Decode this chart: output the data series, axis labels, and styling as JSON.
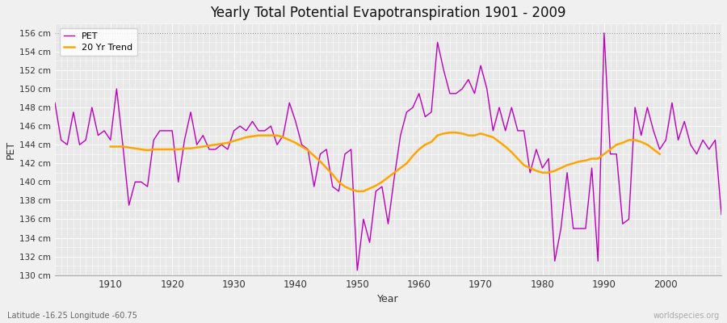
{
  "title": "Yearly Total Potential Evapotranspiration 1901 - 2009",
  "xlabel": "Year",
  "ylabel": "PET",
  "subtitle_left": "Latitude -16.25 Longitude -60.75",
  "watermark": "worldspecies.org",
  "ylim": [
    130,
    157
  ],
  "ytick_labels": [
    "130 cm",
    "132 cm",
    "134 cm",
    "136 cm",
    "138 cm",
    "140 cm",
    "142 cm",
    "144 cm",
    "146 cm",
    "148 cm",
    "150 cm",
    "152 cm",
    "154 cm",
    "156 cm"
  ],
  "ytick_values": [
    130,
    132,
    134,
    136,
    138,
    140,
    142,
    144,
    146,
    148,
    150,
    152,
    154,
    156
  ],
  "pet_color": "#bb00bb",
  "trend_color": "#ffa500",
  "bg_color": "#f0f0f0",
  "plot_bg_color": "#e8e8e8",
  "years": [
    1901,
    1902,
    1903,
    1904,
    1905,
    1906,
    1907,
    1908,
    1909,
    1910,
    1911,
    1912,
    1913,
    1914,
    1915,
    1916,
    1917,
    1918,
    1919,
    1920,
    1921,
    1922,
    1923,
    1924,
    1925,
    1926,
    1927,
    1928,
    1929,
    1930,
    1931,
    1932,
    1933,
    1934,
    1935,
    1936,
    1937,
    1938,
    1939,
    1940,
    1941,
    1942,
    1943,
    1944,
    1945,
    1946,
    1947,
    1948,
    1949,
    1950,
    1951,
    1952,
    1953,
    1954,
    1955,
    1956,
    1957,
    1958,
    1959,
    1960,
    1961,
    1962,
    1963,
    1964,
    1965,
    1966,
    1967,
    1968,
    1969,
    1970,
    1971,
    1972,
    1973,
    1974,
    1975,
    1976,
    1977,
    1978,
    1979,
    1980,
    1981,
    1982,
    1983,
    1984,
    1985,
    1986,
    1987,
    1988,
    1989,
    1990,
    1991,
    1992,
    1993,
    1994,
    1995,
    1996,
    1997,
    1998,
    1999,
    2000,
    2001,
    2002,
    2003,
    2004,
    2005,
    2006,
    2007,
    2008,
    2009
  ],
  "pet": [
    148.5,
    144.5,
    144.0,
    147.5,
    144.0,
    144.5,
    148.0,
    145.0,
    145.5,
    144.5,
    150.0,
    144.0,
    137.5,
    140.0,
    140.0,
    139.5,
    144.5,
    145.5,
    145.5,
    145.5,
    140.0,
    144.5,
    147.5,
    144.0,
    145.0,
    143.5,
    143.5,
    144.0,
    143.5,
    145.5,
    146.0,
    145.5,
    146.5,
    145.5,
    145.5,
    146.0,
    144.0,
    145.0,
    148.5,
    146.5,
    144.0,
    143.5,
    139.5,
    143.0,
    143.5,
    139.5,
    139.0,
    143.0,
    143.5,
    130.5,
    136.0,
    133.5,
    139.0,
    139.5,
    135.5,
    140.5,
    145.0,
    147.5,
    148.0,
    149.5,
    147.0,
    147.5,
    155.0,
    152.0,
    149.5,
    149.5,
    150.0,
    151.0,
    149.5,
    152.5,
    150.0,
    145.5,
    148.0,
    145.5,
    148.0,
    145.5,
    145.5,
    141.0,
    143.5,
    141.5,
    142.5,
    131.5,
    135.0,
    141.0,
    135.0,
    135.0,
    135.0,
    141.5,
    131.5,
    156.0,
    143.0,
    143.0,
    135.5,
    136.0,
    148.0,
    145.0,
    148.0,
    145.5,
    143.5,
    144.5,
    148.5,
    144.5,
    146.5,
    144.0,
    143.0,
    144.5,
    143.5,
    144.5,
    136.5
  ],
  "trend": [
    null,
    null,
    null,
    null,
    null,
    null,
    null,
    null,
    null,
    143.8,
    143.8,
    143.8,
    143.7,
    143.6,
    143.5,
    143.4,
    143.5,
    143.5,
    143.5,
    143.5,
    143.5,
    143.6,
    143.6,
    143.7,
    143.8,
    143.9,
    144.0,
    144.1,
    144.2,
    144.4,
    144.6,
    144.8,
    144.9,
    145.0,
    145.0,
    145.0,
    145.0,
    144.8,
    144.5,
    144.2,
    143.8,
    143.4,
    142.8,
    142.2,
    141.5,
    140.8,
    140.0,
    139.5,
    139.2,
    139.0,
    139.0,
    139.3,
    139.6,
    140.0,
    140.5,
    141.0,
    141.5,
    142.0,
    142.8,
    143.5,
    144.0,
    144.3,
    145.0,
    145.2,
    145.3,
    145.3,
    145.2,
    145.0,
    145.0,
    145.2,
    145.0,
    144.8,
    144.3,
    143.8,
    143.2,
    142.5,
    141.8,
    141.5,
    141.2,
    141.0,
    141.0,
    141.2,
    141.5,
    141.8,
    142.0,
    142.2,
    142.3,
    142.5,
    142.5,
    143.0,
    143.5,
    144.0,
    144.2,
    144.5,
    144.5,
    144.3,
    144.0,
    143.5,
    143.0,
    null,
    null,
    null,
    null,
    null,
    null,
    null,
    null,
    null,
    null
  ]
}
